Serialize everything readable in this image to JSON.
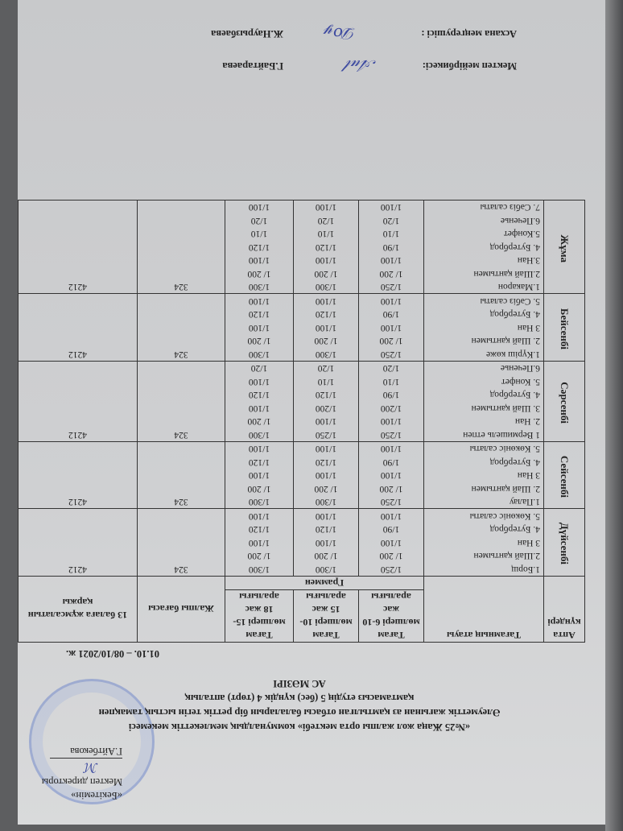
{
  "approval": {
    "line1": "«Бекітемін»",
    "line2": "Мектеп директоры",
    "name": "Г.Айтбекова"
  },
  "title": {
    "line1": "«№25 Жаңа жол жалпы орта мектебі» коммуналдық мемлекеттік мекемесі",
    "line2": "Әлеуметтік жағынан аз қамтылған отбасы балаларын бір реттік тегін ыстық тамақпен",
    "line3": "қамтамасыз етудің 5 (бес) күндік 4 (төрт) апталық",
    "line4": "АС МӘЗІРІ"
  },
  "period": "01.10. – 08/10/2021 ж.",
  "table": {
    "headers": {
      "day": "Апта күндері",
      "dish": "Тағамның атауы",
      "age1": "Тағам мөлшері 6-10 жас аралығы",
      "age2": "Тағам мөлшері 10-15 жас аралығы",
      "age3": "Тағам мөлшері 15-18 жас аралығы",
      "price": "Жалпы бағасы",
      "total": "13 балаға жұмсалатын қаржы",
      "unit": "Граммен"
    },
    "days": [
      {
        "day": "Дүйсенбі",
        "price": "324",
        "total": "4212",
        "items": [
          [
            "1.Борщ",
            "1/250",
            "1/300",
            "1/300"
          ],
          [
            "2.Шай қантымен",
            "1/ 200",
            "1/ 200",
            "1/ 200"
          ],
          [
            "3 Нан",
            "1/100",
            "1/100",
            "1/100"
          ],
          [
            "4. Бутерброд",
            "1/90",
            "1/120",
            "1/120"
          ],
          [
            "5. Көкөніс салаты",
            "1/100",
            "1/100",
            "1/100"
          ]
        ]
      },
      {
        "day": "Сейсенбі",
        "price": "324",
        "total": "4212",
        "items": [
          [
            "1.Палау",
            "1/250",
            "1/300",
            "1/300"
          ],
          [
            "2. Шай қантымен",
            "1/ 200",
            "1/ 200",
            "1/ 200"
          ],
          [
            "3 Нан",
            "1/100",
            "1/100",
            "1/100"
          ],
          [
            "4. Бутерброд",
            "1/90",
            "1/120",
            "1/120"
          ],
          [
            "5. Көкөніс салаты",
            "1/100",
            "1/100",
            "1/100"
          ]
        ]
      },
      {
        "day": "Сәрсенбі",
        "price": "324",
        "total": "4212",
        "items": [
          [
            "1 Вермишель етпен",
            "1/250",
            "1/250",
            "1/300"
          ],
          [
            "2. Нан",
            "1/100",
            "1/100",
            "1/ 200"
          ],
          [
            "3. Шай қантымен",
            "1/200",
            "1/200",
            "1/100"
          ],
          [
            "4. Бутерброд",
            "1/90",
            "1/120",
            "1/120"
          ],
          [
            "5. Конфет",
            "1/10",
            "1/10",
            "1/100"
          ],
          [
            "6.Печенье",
            "1/20",
            "1/20",
            "1/20"
          ]
        ]
      },
      {
        "day": "Бейсенбі",
        "price": "324",
        "total": "4212",
        "items": [
          [
            "1.Күріш көже",
            "1/250",
            "1/300",
            "1/300"
          ],
          [
            "2. Шай қантымен",
            "1/ 200",
            "1/ 200",
            "1/ 200"
          ],
          [
            "3 Нан",
            "1/100",
            "1/100",
            "1/100"
          ],
          [
            "4. Бутерброд",
            "1/90",
            "1/120",
            "1/120"
          ],
          [
            "5. Сәбіз салаты",
            "1/100",
            "1/100",
            "1/100"
          ]
        ]
      },
      {
        "day": "Жұма",
        "price": "324",
        "total": "4212",
        "items": [
          [
            "1.Макарон",
            "1/250",
            "1/300",
            "1/300"
          ],
          [
            "2.Шай қантымен",
            "1/ 200",
            "1/ 200",
            "1/ 200"
          ],
          [
            "3.Нан",
            "1/100",
            "1/100",
            "1/100"
          ],
          [
            "4. Бутерброд",
            "1/90",
            "1/120",
            "1/120"
          ],
          [
            "5.Конфет",
            "1/10",
            "1/10",
            "1/10"
          ],
          [
            "6.Печенье",
            "1/20",
            "1/20",
            "1/20"
          ],
          [
            "7. Сәбіз салаты",
            "1/100",
            "1/100",
            "1/100"
          ]
        ]
      }
    ]
  },
  "signatures": {
    "nurse_label": "Мектеп мейірбикесі:",
    "nurse_name": "Г.Байтараева",
    "cook_label": "Асхана меңгерушісі :",
    "cook_name": "Ж.Наурызбаева"
  }
}
